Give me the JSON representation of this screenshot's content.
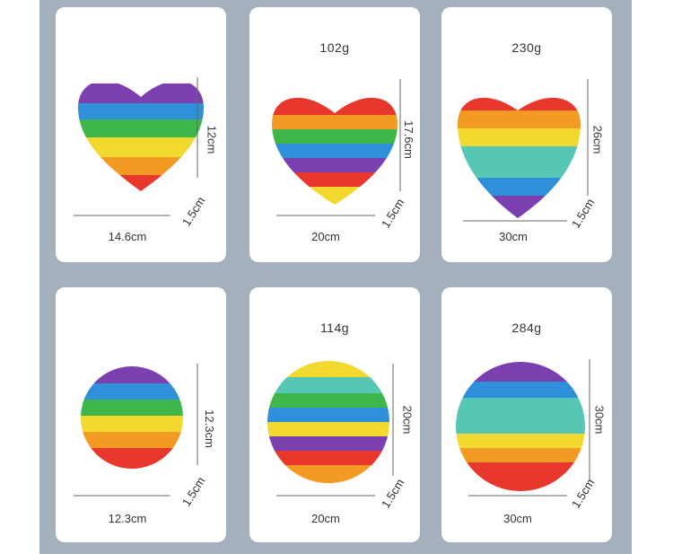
{
  "products": [
    {
      "shape": "heart",
      "weight": "",
      "width": "14.6cm",
      "height": "12cm",
      "depth": "1.5cm"
    },
    {
      "shape": "heart",
      "weight": "102g",
      "width": "20cm",
      "height": "17.6cm",
      "depth": "1.5cm"
    },
    {
      "shape": "heart",
      "weight": "230g",
      "width": "30cm",
      "height": "26cm",
      "depth": "1.5cm"
    },
    {
      "shape": "circle",
      "weight": "",
      "width": "12.3cm",
      "height": "12.3cm",
      "depth": "1.5cm"
    },
    {
      "shape": "circle",
      "weight": "114g",
      "width": "20cm",
      "height": "20cm",
      "depth": "1.5cm"
    },
    {
      "shape": "circle",
      "weight": "284g",
      "width": "30cm",
      "height": "30cm",
      "depth": "1.5cm"
    }
  ],
  "colors": {
    "backdrop": "#a4b1bc",
    "rainbow": [
      "#7b3fb0",
      "#2f8fd8",
      "#3fb64a",
      "#f2d92f",
      "#f39a25",
      "#e8372c"
    ]
  }
}
